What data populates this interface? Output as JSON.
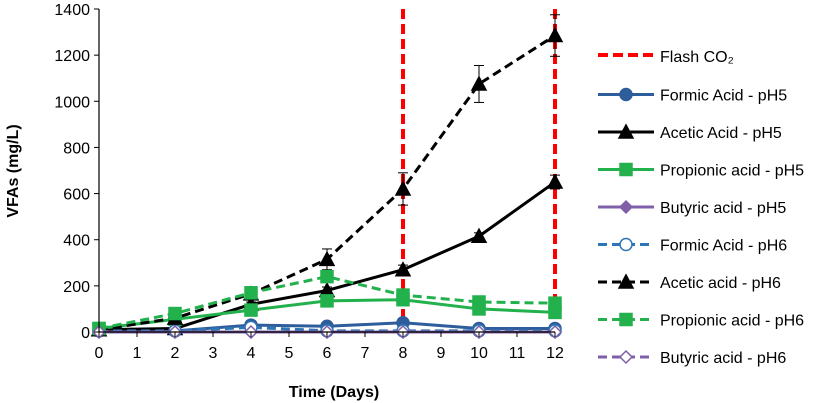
{
  "chart_data": {
    "type": "line",
    "xlabel": "Time (Days)",
    "ylabel": "VFAs (mg/L)",
    "xlim": [
      0,
      12
    ],
    "ylim": [
      0,
      1400
    ],
    "xticks": [
      0,
      1,
      2,
      3,
      4,
      5,
      6,
      7,
      8,
      9,
      10,
      11,
      12
    ],
    "yticks": [
      0,
      200,
      400,
      600,
      800,
      1000,
      1200,
      1400
    ],
    "legend_position": "right",
    "flash": {
      "name": "Flash CO₂",
      "x": [
        8,
        12
      ],
      "color": "#ff0000",
      "style": "dashed"
    },
    "series": [
      {
        "name": "Formic Acid - pH5",
        "color": "#2e5d9b",
        "marker": "circle",
        "filled": true,
        "dashed": false,
        "x": [
          0,
          2,
          4,
          6,
          8,
          10,
          12
        ],
        "values": [
          5,
          5,
          30,
          25,
          40,
          15,
          15
        ],
        "err": [
          0,
          0,
          8,
          5,
          8,
          4,
          4
        ]
      },
      {
        "name": "Acetic Acid - pH5",
        "color": "#000000",
        "marker": "triangle",
        "filled": true,
        "dashed": false,
        "x": [
          0,
          2,
          4,
          6,
          8,
          10,
          12
        ],
        "values": [
          10,
          15,
          120,
          180,
          270,
          415,
          650
        ],
        "err": [
          0,
          0,
          10,
          15,
          20,
          15,
          30
        ]
      },
      {
        "name": "Propionic acid - pH5",
        "color": "#22b14c",
        "marker": "square",
        "filled": true,
        "dashed": false,
        "x": [
          0,
          2,
          4,
          6,
          8,
          10,
          12
        ],
        "values": [
          15,
          55,
          95,
          135,
          140,
          100,
          85
        ],
        "err": [
          0,
          10,
          10,
          12,
          12,
          10,
          10
        ]
      },
      {
        "name": "Butyric acid - pH5",
        "color": "#7f5fa8",
        "marker": "diamond",
        "filled": true,
        "dashed": false,
        "x": [
          0,
          2,
          4,
          6,
          8,
          10,
          12
        ],
        "values": [
          0,
          0,
          0,
          0,
          0,
          0,
          0
        ],
        "err": [
          0,
          0,
          0,
          0,
          0,
          0,
          0
        ]
      },
      {
        "name": "Formic Acid - pH6",
        "color": "#2e75b6",
        "marker": "circle",
        "filled": false,
        "dashed": true,
        "x": [
          0,
          2,
          4,
          6,
          8,
          10,
          12
        ],
        "values": [
          5,
          5,
          20,
          5,
          5,
          5,
          5
        ],
        "err": [
          0,
          0,
          5,
          0,
          0,
          0,
          0
        ]
      },
      {
        "name": "Acetic acid - pH6",
        "color": "#000000",
        "marker": "triangle",
        "filled": true,
        "dashed": true,
        "x": [
          0,
          2,
          4,
          6,
          8,
          10,
          12
        ],
        "values": [
          10,
          60,
          165,
          315,
          620,
          1075,
          1285
        ],
        "err": [
          0,
          10,
          15,
          45,
          70,
          80,
          90
        ]
      },
      {
        "name": "Propionic acid - pH6",
        "color": "#22b14c",
        "marker": "square",
        "filled": true,
        "dashed": true,
        "x": [
          0,
          2,
          4,
          6,
          8,
          10,
          12
        ],
        "values": [
          15,
          80,
          170,
          240,
          160,
          130,
          125
        ],
        "err": [
          0,
          10,
          12,
          15,
          12,
          10,
          10
        ]
      },
      {
        "name": "Butyric acid - pH6",
        "color": "#7f5fa8",
        "marker": "diamond",
        "filled": false,
        "dashed": true,
        "x": [
          0,
          2,
          4,
          6,
          8,
          10,
          12
        ],
        "values": [
          0,
          0,
          0,
          0,
          0,
          0,
          0
        ],
        "err": [
          0,
          0,
          0,
          0,
          0,
          0,
          0
        ]
      }
    ]
  }
}
